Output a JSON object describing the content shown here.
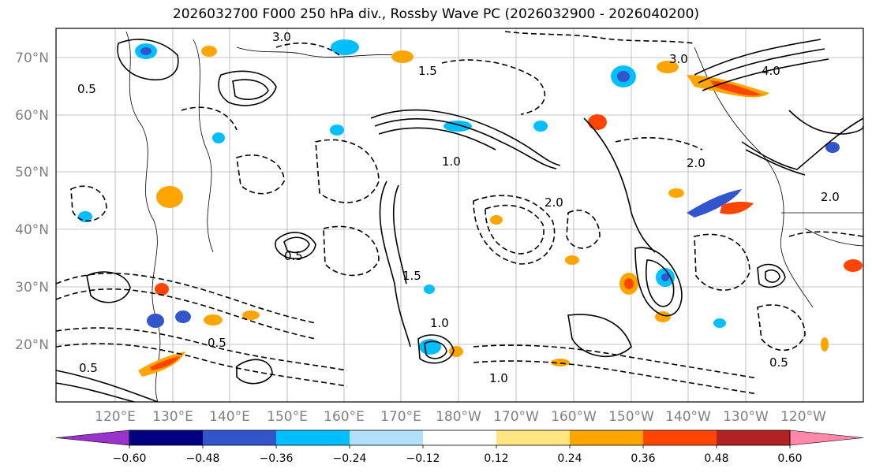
{
  "title": "2026032700 F000 250 hPa div., Rossby Wave PC (2026032900 - 2026040200)",
  "lat_labels": [
    "70°N",
    "60°N",
    "50°N",
    "40°N",
    "30°N",
    "20°N"
  ],
  "lon_labels": [
    "120°E",
    "130°E",
    "140°E",
    "150°E",
    "160°E",
    "170°E",
    "180°W",
    "170°W",
    "160°W",
    "150°W",
    "140°W",
    "130°W",
    "120°W"
  ],
  "colorbar": {
    "colors": [
      "#9933cc",
      "#000080",
      "#3355cc",
      "#00bfff",
      "#b0e0fa",
      "#ffffff",
      "#ffe680",
      "#ffa500",
      "#ff4500",
      "#b22222",
      "#ff88aa"
    ],
    "ticks": [
      "−0.60",
      "−0.48",
      "−0.36",
      "−0.24",
      "−0.12",
      "0.12",
      "0.24",
      "0.36",
      "0.48",
      "0.60"
    ]
  },
  "contour_labels": [
    "0.5",
    "3.0",
    "1.5",
    "2.0",
    "4.0",
    "1.0",
    "0.5",
    "3.0",
    "2.0",
    "0.5",
    "1.0",
    "0.5",
    "1.5",
    "2.0",
    "1.0",
    "0.5"
  ]
}
